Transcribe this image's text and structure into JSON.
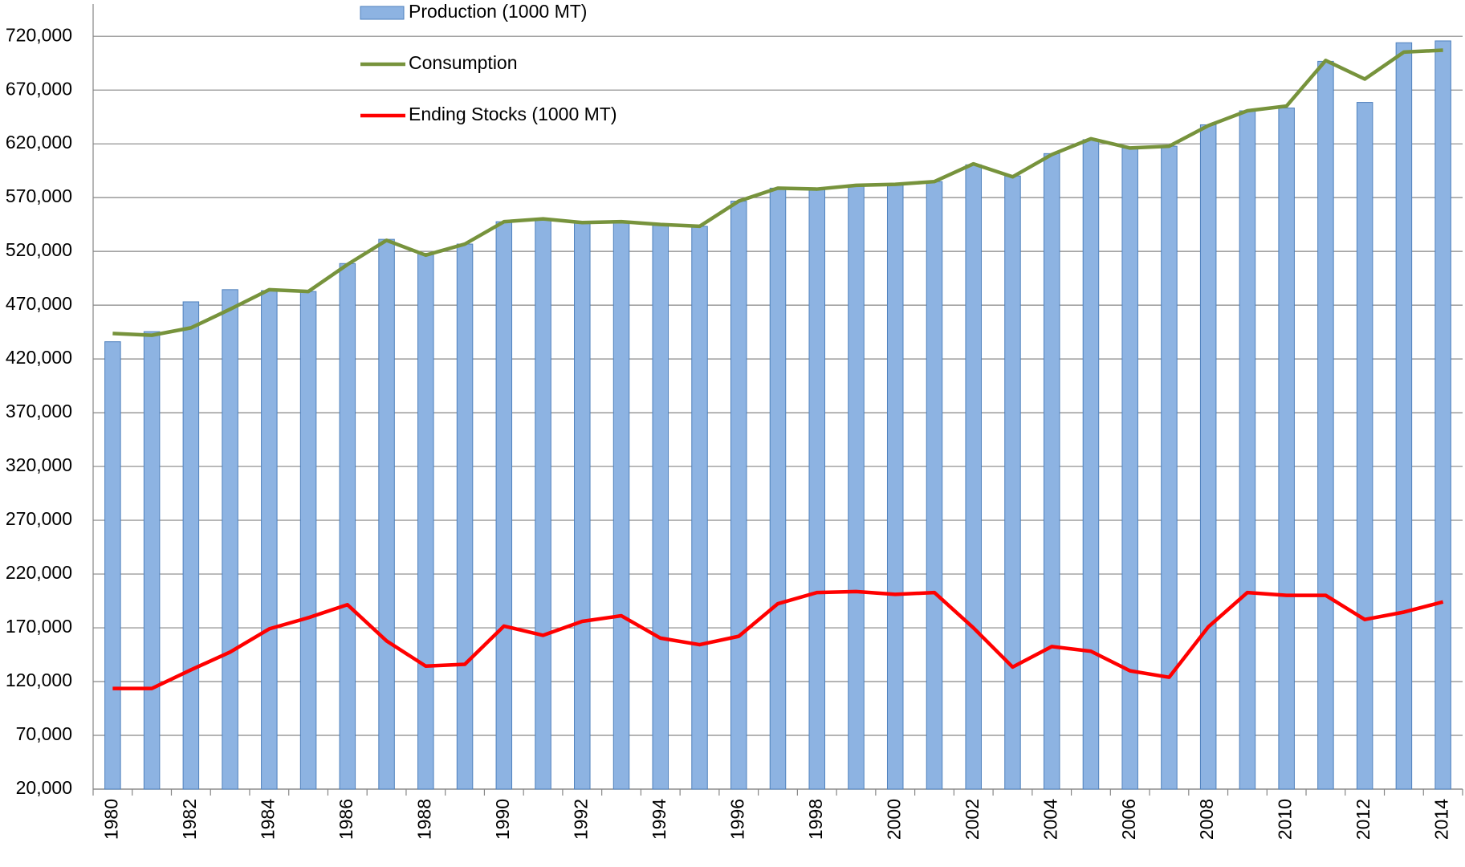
{
  "chart_data": {
    "type": "bar_line",
    "categories": [
      "1980",
      null,
      "1982",
      null,
      "1984",
      null,
      "1986",
      null,
      "1988",
      null,
      "1990",
      null,
      "1992",
      null,
      "1994",
      null,
      "1996",
      null,
      "1998",
      null,
      "2000",
      null,
      "2002",
      null,
      "2004",
      null,
      "2006",
      null,
      "2008",
      null,
      "2010",
      null,
      "2012",
      null,
      "2014"
    ],
    "series": [
      {
        "name": "Production (1000 MT)",
        "type": "bar",
        "color": "#8db3e2",
        "values": [
          436000,
          445400,
          473100,
          484400,
          483500,
          482700,
          508700,
          531200,
          518200,
          526800,
          547600,
          550200,
          546800,
          547600,
          544200,
          543300,
          566700,
          578800,
          578800,
          581400,
          582300,
          584900,
          600500,
          590100,
          610900,
          623900,
          616100,
          617800,
          637700,
          650700,
          653300,
          696700,
          658500,
          714000,
          715700
        ]
      },
      {
        "name": "Consumption",
        "type": "line",
        "color": "#77933c",
        "values": [
          443700,
          442000,
          448900,
          466200,
          484400,
          482700,
          507800,
          530300,
          516500,
          526800,
          547600,
          550200,
          546800,
          547600,
          545000,
          543300,
          566700,
          578800,
          577900,
          581400,
          582300,
          584900,
          601400,
          589300,
          610000,
          624700,
          616100,
          617800,
          636900,
          650700,
          655100,
          697500,
          680200,
          705300,
          707100
        ]
      },
      {
        "name": "Ending Stocks (1000 MT)",
        "type": "line",
        "color": "#ff0000",
        "values": [
          113600,
          113600,
          130900,
          147400,
          169000,
          179400,
          191500,
          157800,
          134400,
          136100,
          171600,
          163000,
          176000,
          181200,
          160400,
          154300,
          162100,
          192400,
          202800,
          203700,
          201100,
          202800,
          169900,
          133500,
          152600,
          148200,
          130000,
          124000,
          170800,
          202800,
          200200,
          200200,
          177700,
          184600,
          194100
        ]
      }
    ],
    "ylim": [
      20000,
      750000
    ],
    "yticks": [
      {
        "value": 20000,
        "label": "20,000"
      },
      {
        "value": 70000,
        "label": "70,000"
      },
      {
        "value": 120000,
        "label": "120,000"
      },
      {
        "value": 170000,
        "label": "170,000"
      },
      {
        "value": 220000,
        "label": "220,000"
      },
      {
        "value": 270000,
        "label": "270,000"
      },
      {
        "value": 320000,
        "label": "320,000"
      },
      {
        "value": 370000,
        "label": "370,000"
      },
      {
        "value": 420000,
        "label": "420,000"
      },
      {
        "value": 470000,
        "label": "470,000"
      },
      {
        "value": 520000,
        "label": "520,000"
      },
      {
        "value": 570000,
        "label": "570,000"
      },
      {
        "value": 620000,
        "label": "620,000"
      },
      {
        "value": 670000,
        "label": "670,000"
      },
      {
        "value": 720000,
        "label": "720,000"
      }
    ],
    "grid": true,
    "legend": "top"
  }
}
